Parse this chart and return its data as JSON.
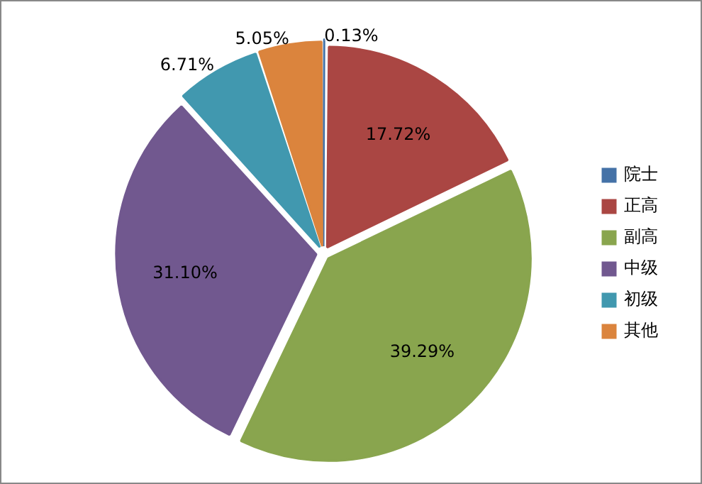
{
  "chart_data": {
    "type": "pie",
    "categories": [
      "院士",
      "正高",
      "副高",
      "中级",
      "初级",
      "其他"
    ],
    "values": [
      0.13,
      17.72,
      39.29,
      31.1,
      6.71,
      5.05
    ],
    "colors": [
      "#4572a7",
      "#aa4643",
      "#89a54e",
      "#71588f",
      "#4198af",
      "#db843d"
    ],
    "legend": "right",
    "value_labels": [
      "0.13%",
      "17.72%",
      "39.29%",
      "31.10%",
      "6.71%",
      "5.05%"
    ]
  }
}
